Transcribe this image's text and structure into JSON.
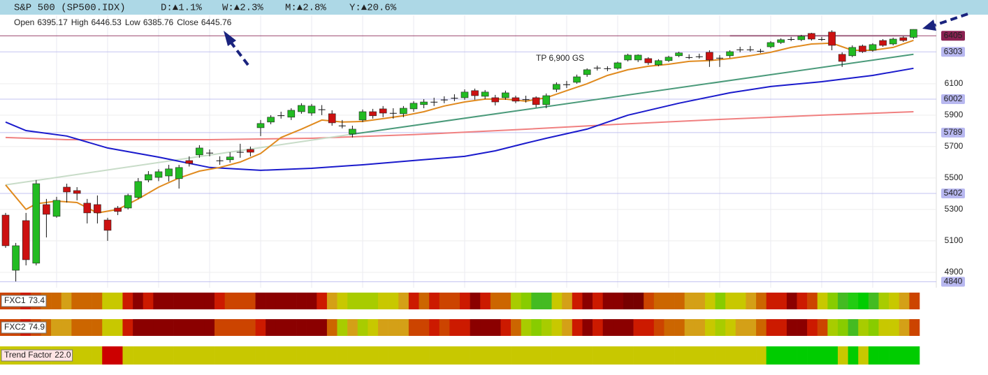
{
  "chart_data": {
    "type": "candlestick",
    "title": "S&P 500 (SP500.IDX)",
    "changes": [
      "D:▲1.1%",
      "W:▲2.3%",
      "M:▲2.8%",
      "Y:▲20.6%"
    ],
    "ohlc_labels": [
      "Open",
      "High",
      "Low",
      "Close"
    ],
    "open": [
      5264,
      4913,
      5229,
      4958,
      5331,
      5256,
      5442,
      5420,
      5340,
      5331,
      5233,
      5309,
      5309,
      5376,
      5487,
      5504,
      5513,
      5496,
      5611,
      5647,
      5661,
      5612,
      5616,
      5666,
      5682,
      5820,
      5856,
      5899,
      5887,
      5922,
      5913,
      5937,
      5909,
      5834,
      5780,
      5869,
      5922,
      5940,
      5914,
      5909,
      5940,
      5967,
      5985,
      5999,
      6010,
      6011,
      6056,
      6020,
      6011,
      6011,
      6011,
      6001,
      6011,
      5967,
      6064,
      6096,
      6109,
      6158,
      6202,
      6198,
      6198,
      6251,
      6251,
      6260,
      6220,
      6247,
      6278,
      6269,
      6274,
      6300,
      6265,
      6278,
      6318,
      6318,
      6309,
      6335,
      6362,
      6384,
      6380,
      6420,
      6384,
      6429,
      6287,
      6278,
      6340,
      6313,
      6375,
      6353,
      6393,
      6395.17
    ],
    "high": [
      5278,
      5087,
      5278,
      5487,
      5367,
      5380,
      5464,
      5442,
      5367,
      5389,
      5247,
      5322,
      5400,
      5500,
      5544,
      5556,
      5584,
      5584,
      5638,
      5709,
      5682,
      5638,
      5664,
      5718,
      5700,
      5869,
      5900,
      5922,
      5944,
      5976,
      5971,
      5964,
      5931,
      5869,
      5833,
      5936,
      5940,
      5958,
      5944,
      5958,
      5989,
      6002,
      6011,
      6020,
      6033,
      6064,
      6069,
      6060,
      6029,
      6056,
      6024,
      6024,
      6020,
      6038,
      6109,
      6118,
      6158,
      6198,
      6215,
      6211,
      6240,
      6291,
      6287,
      6269,
      6256,
      6278,
      6304,
      6287,
      6291,
      6313,
      6282,
      6313,
      6335,
      6340,
      6322,
      6371,
      6389,
      6398,
      6411,
      6424,
      6398,
      6440,
      6300,
      6344,
      6349,
      6358,
      6384,
      6393,
      6402,
      6446.53
    ],
    "low": [
      5056,
      4842,
      4944,
      4944,
      5122,
      5247,
      5344,
      5358,
      5211,
      5211,
      5100,
      5264,
      5300,
      5367,
      5473,
      5480,
      5478,
      5433,
      5573,
      5629,
      5638,
      5584,
      5598,
      5629,
      5638,
      5767,
      5842,
      5878,
      5869,
      5909,
      5896,
      5900,
      5833,
      5816,
      5758,
      5856,
      5878,
      5887,
      5878,
      5887,
      5922,
      5944,
      5958,
      5976,
      5989,
      5998,
      5998,
      6002,
      5962,
      5998,
      5976,
      5980,
      5949,
      5944,
      6047,
      6073,
      6100,
      6144,
      6184,
      6180,
      6189,
      6242,
      6238,
      6220,
      6211,
      6238,
      6269,
      6256,
      6260,
      6207,
      6207,
      6264,
      6300,
      6304,
      6296,
      6326,
      6353,
      6371,
      6371,
      6375,
      6371,
      6313,
      6207,
      6269,
      6296,
      6304,
      6335,
      6344,
      6366,
      6385.76
    ],
    "close": [
      5069,
      5069,
      4980,
      5464,
      5269,
      5358,
      5411,
      5402,
      5278,
      5278,
      5167,
      5287,
      5389,
      5478,
      5522,
      5540,
      5558,
      5567,
      5593,
      5691,
      5661,
      5612,
      5634,
      5666,
      5664,
      5847,
      5887,
      5899,
      5931,
      5962,
      5958,
      5937,
      5851,
      5834,
      5811,
      5922,
      5896,
      5913,
      5914,
      5944,
      5976,
      5984,
      5985,
      5999,
      6010,
      6047,
      6024,
      6047,
      5984,
      6042,
      5989,
      6001,
      5967,
      6024,
      6096,
      6096,
      6144,
      6189,
      6202,
      6198,
      6233,
      6282,
      6282,
      6233,
      6247,
      6269,
      6296,
      6269,
      6274,
      6251,
      6265,
      6304,
      6318,
      6318,
      6309,
      6362,
      6380,
      6384,
      6402,
      6384,
      6384,
      6344,
      6242,
      6331,
      6304,
      6349,
      6344,
      6384,
      6375,
      6445.76
    ],
    "up_color": "#22bb22",
    "down_color": "#cc1111",
    "flat_color": "#111111",
    "ylim": [
      4802,
      6535
    ],
    "yticks": [
      4900,
      5100,
      5300,
      5500,
      5700,
      5900,
      6100
    ],
    "grid": true,
    "levels": [
      {
        "value": 6405,
        "color": "#8b2252",
        "text_color": "#ffffff"
      },
      {
        "value": 6303,
        "color": "#b8b8f0",
        "text_color": "#222222"
      },
      {
        "value": 6002,
        "color": "#b8b8f0",
        "text_color": "#222222"
      },
      {
        "value": 5789,
        "color": "#b8b8f0",
        "text_color": "#222222"
      },
      {
        "value": 5402,
        "color": "#b8b8f0",
        "text_color": "#222222"
      },
      {
        "value": 4840,
        "color": "#b8b8f0",
        "text_color": "#222222"
      }
    ],
    "lines": [
      {
        "color": "#f08080",
        "x": [
          0,
          6,
          20,
          30,
          40,
          50,
          60,
          70,
          80,
          89
        ],
        "values": [
          5758,
          5744,
          5744,
          5753,
          5776,
          5807,
          5842,
          5873,
          5900,
          5922
        ]
      },
      {
        "color": "#c8dcc8",
        "x": [
          0,
          33.7
        ],
        "values": [
          5456,
          5776
        ]
      },
      {
        "color": "#4a9a7a",
        "x": [
          33.7,
          89
        ],
        "values": [
          5776,
          6287
        ]
      },
      {
        "color": "#a06080",
        "x": [
          71,
          89
        ],
        "values": [
          6405,
          6405
        ]
      },
      {
        "color": "#1a1acc",
        "x": [
          0,
          2,
          6,
          10,
          15,
          20,
          25,
          30,
          35,
          40,
          45,
          48,
          51,
          53,
          57,
          61,
          66,
          71,
          75,
          80,
          85,
          89
        ],
        "values": [
          5856,
          5802,
          5767,
          5691,
          5633,
          5567,
          5549,
          5562,
          5584,
          5611,
          5638,
          5673,
          5722,
          5753,
          5811,
          5900,
          5976,
          6042,
          6082,
          6113,
          6153,
          6198
        ]
      },
      {
        "color": "#e08a1e",
        "x": [
          0,
          2,
          3,
          5,
          7,
          9,
          11,
          13,
          15,
          17,
          19,
          21,
          23,
          25,
          27,
          29,
          31,
          33,
          35,
          37,
          39,
          41,
          43,
          45,
          47,
          49,
          51,
          53,
          55,
          57,
          59,
          61,
          63,
          65,
          67,
          69,
          71,
          73,
          75,
          77,
          79,
          81,
          83,
          85,
          87,
          89
        ],
        "values": [
          5456,
          5300,
          5336,
          5353,
          5344,
          5278,
          5300,
          5367,
          5442,
          5500,
          5544,
          5567,
          5602,
          5656,
          5758,
          5811,
          5869,
          5856,
          5860,
          5878,
          5896,
          5922,
          5958,
          5984,
          6002,
          6002,
          5989,
          6011,
          6056,
          6100,
          6153,
          6189,
          6211,
          6224,
          6242,
          6247,
          6260,
          6278,
          6300,
          6331,
          6353,
          6358,
          6313,
          6313,
          6331,
          6376
        ]
      }
    ],
    "annotation": "TP 6,900 GS",
    "indicators": [
      {
        "name": "FXC1",
        "value": 73.4,
        "colors": [
          "#cc4400",
          "#cc4400",
          "#cc1a00",
          "#cc4400",
          "#cc6600",
          "#cc6600",
          "#d4a017",
          "#cc6600",
          "#cc6600",
          "#cc6600",
          "#c8c800",
          "#c8c800",
          "#cc1a00",
          "#8b0000",
          "#cc1a00",
          "#8b0000",
          "#8b0000",
          "#8b0000",
          "#8b0000",
          "#8b0000",
          "#8b0000",
          "#cc1a00",
          "#cc4400",
          "#cc4400",
          "#cc4400",
          "#8b0000",
          "#8b0000",
          "#8b0000",
          "#8b0000",
          "#8b0000",
          "#8b0000",
          "#cc1a00",
          "#d4a017",
          "#c8c800",
          "#a8cc00",
          "#a8cc00",
          "#a8cc00",
          "#c8c800",
          "#c8c800",
          "#d4a017",
          "#cc1a00",
          "#cc6600",
          "#cc1a00",
          "#cc4400",
          "#cc4400",
          "#cc1a00",
          "#8b0000",
          "#cc1a00",
          "#cc6600",
          "#cc6600",
          "#a8cc00",
          "#88cc00",
          "#44bb22",
          "#44bb22",
          "#c8c800",
          "#d4a017",
          "#cc1a00",
          "#8b0000",
          "#cc1a00",
          "#8b0000",
          "#8b0000",
          "#770000",
          "#770000",
          "#cc4400",
          "#cc6600",
          "#cc6600",
          "#cc6600",
          "#d4a017",
          "#d4a017",
          "#c8c800",
          "#88cc00",
          "#c8c800",
          "#c8c800",
          "#d4a017",
          "#cc6600",
          "#cc1a00",
          "#cc1a00",
          "#8b0000",
          "#cc1a00",
          "#cc4400",
          "#c8c800",
          "#88cc00",
          "#44bb22",
          "#22cc11",
          "#00cc00",
          "#44bb22",
          "#a8cc00",
          "#c8c800",
          "#d4a017",
          "#cc4400"
        ]
      },
      {
        "name": "FXC2",
        "value": 74.9,
        "colors": [
          "#cc4400",
          "#cc4400",
          "#cc1a00",
          "#cc4400",
          "#cc6600",
          "#d4a017",
          "#d4a017",
          "#cc6600",
          "#cc6600",
          "#cc6600",
          "#c8c800",
          "#c8c800",
          "#cc1a00",
          "#8b0000",
          "#8b0000",
          "#8b0000",
          "#8b0000",
          "#8b0000",
          "#8b0000",
          "#8b0000",
          "#8b0000",
          "#cc4400",
          "#cc4400",
          "#cc4400",
          "#cc4400",
          "#cc1a00",
          "#8b0000",
          "#8b0000",
          "#8b0000",
          "#8b0000",
          "#8b0000",
          "#8b0000",
          "#cc6600",
          "#a8cc00",
          "#d4a017",
          "#a8cc00",
          "#c8c800",
          "#d4a017",
          "#d4a017",
          "#d4a017",
          "#cc4400",
          "#cc4400",
          "#cc1a00",
          "#cc4400",
          "#cc1a00",
          "#cc1a00",
          "#8b0000",
          "#8b0000",
          "#8b0000",
          "#cc1a00",
          "#cc6600",
          "#a8cc00",
          "#88cc00",
          "#a8cc00",
          "#c8c800",
          "#d4a017",
          "#cc1a00",
          "#8b0000",
          "#cc1a00",
          "#8b0000",
          "#8b0000",
          "#8b0000",
          "#cc1a00",
          "#cc1a00",
          "#cc4400",
          "#cc6600",
          "#cc6600",
          "#d4a017",
          "#d4a017",
          "#c8c800",
          "#a8cc00",
          "#c8c800",
          "#d4a017",
          "#d4a017",
          "#cc6600",
          "#cc1a00",
          "#cc1a00",
          "#8b0000",
          "#8b0000",
          "#cc1a00",
          "#cc4400",
          "#a8cc00",
          "#88cc00",
          "#44bb22",
          "#a8cc00",
          "#88cc00",
          "#c8c800",
          "#c8c800",
          "#d4a017",
          "#cc4400"
        ]
      },
      {
        "name": "Trend Factor",
        "value": {
          "value": 22,
          "label": "22.0"
        },
        "colors": [
          "#c8c800",
          "#c8c800",
          "#c8c800",
          "#c8c800",
          "#c8c800",
          "#c8c800",
          "#c8c800",
          "#c8c800",
          "#c8c800",
          "#c8c800",
          "#cc0000",
          "#cc0000",
          "#c8c800",
          "#c8c800",
          "#c8c800",
          "#c8c800",
          "#c8c800",
          "#c8c800",
          "#c8c800",
          "#c8c800",
          "#c8c800",
          "#c8c800",
          "#c8c800",
          "#c8c800",
          "#c8c800",
          "#c8c800",
          "#c8c800",
          "#c8c800",
          "#c8c800",
          "#c8c800",
          "#c8c800",
          "#c8c800",
          "#c8c800",
          "#c8c800",
          "#c8c800",
          "#c8c800",
          "#c8c800",
          "#c8c800",
          "#c8c800",
          "#c8c800",
          "#c8c800",
          "#c8c800",
          "#c8c800",
          "#c8c800",
          "#c8c800",
          "#c8c800",
          "#c8c800",
          "#c8c800",
          "#c8c800",
          "#c8c800",
          "#c8c800",
          "#c8c800",
          "#c8c800",
          "#c8c800",
          "#c8c800",
          "#c8c800",
          "#c8c800",
          "#c8c800",
          "#c8c800",
          "#c8c800",
          "#c8c800",
          "#c8c800",
          "#c8c800",
          "#c8c800",
          "#c8c800",
          "#c8c800",
          "#c8c800",
          "#c8c800",
          "#c8c800",
          "#c8c800",
          "#c8c800",
          "#c8c800",
          "#c8c800",
          "#c8c800",
          "#c8c800",
          "#00cc00",
          "#00cc00",
          "#00cc00",
          "#00cc00",
          "#00cc00",
          "#00cc00",
          "#00cc00",
          "#c8c800",
          "#00cc00",
          "#c8c800",
          "#00cc00",
          "#00cc00",
          "#00cc00",
          "#00cc00",
          "#00cc00"
        ]
      }
    ]
  }
}
